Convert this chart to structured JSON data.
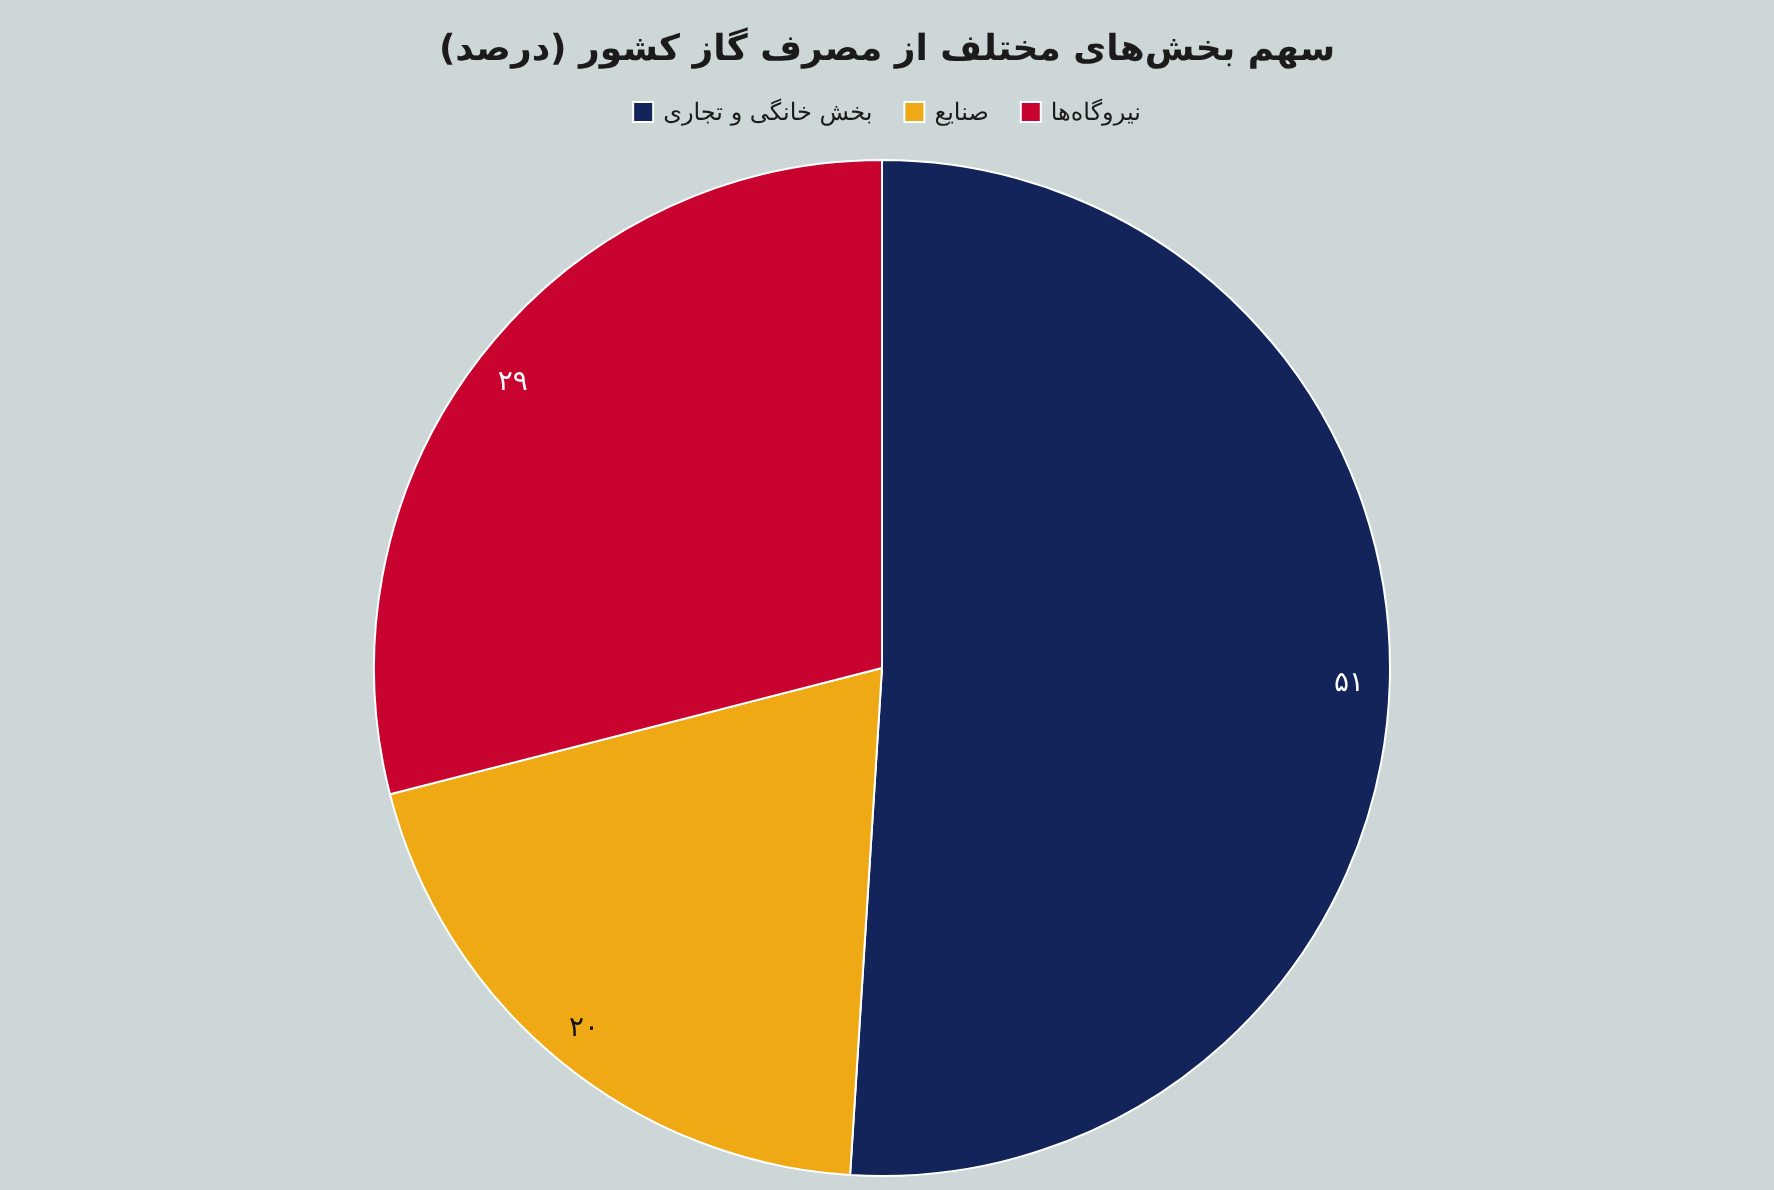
{
  "chart_data": {
    "type": "pie",
    "title": "سهم بخش‌های مختلف از مصرف گاز کشور (درصد)",
    "categories": [
      "بخش خانگی و تجاری",
      "صنایع",
      "نیروگاه‌ها"
    ],
    "values": [
      51,
      20,
      29
    ],
    "colors": [
      "#13245a",
      "#eea914",
      "#c8032f"
    ],
    "value_labels": [
      "۵۱",
      "۲۰",
      "۲۹"
    ],
    "legend": "top"
  }
}
